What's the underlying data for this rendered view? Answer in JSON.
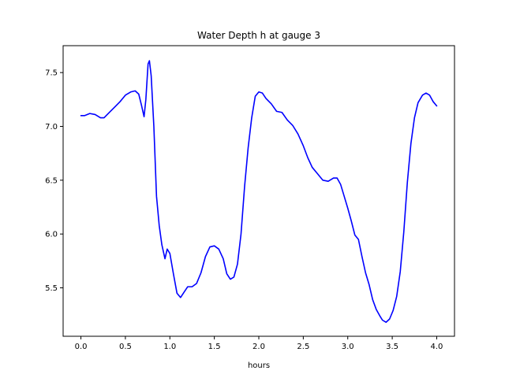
{
  "chart_data": {
    "type": "line",
    "title": "Water Depth h at gauge 3",
    "xlabel": "hours",
    "ylabel": "",
    "xlim": [
      -0.2,
      4.2
    ],
    "ylim": [
      5.05,
      7.75
    ],
    "grid": false,
    "xticks": [
      {
        "value": 0.0,
        "label": "0.0"
      },
      {
        "value": 0.5,
        "label": "0.5"
      },
      {
        "value": 1.0,
        "label": "1.0"
      },
      {
        "value": 1.5,
        "label": "1.5"
      },
      {
        "value": 2.0,
        "label": "2.0"
      },
      {
        "value": 2.5,
        "label": "2.5"
      },
      {
        "value": 3.0,
        "label": "3.0"
      },
      {
        "value": 3.5,
        "label": "3.5"
      },
      {
        "value": 4.0,
        "label": "4.0"
      }
    ],
    "yticks": [
      {
        "value": 5.5,
        "label": "5.5"
      },
      {
        "value": 6.0,
        "label": "6.0"
      },
      {
        "value": 6.5,
        "label": "6.5"
      },
      {
        "value": 7.0,
        "label": "7.0"
      },
      {
        "value": 7.5,
        "label": "7.5"
      }
    ],
    "series": [
      {
        "color": "#0000ff",
        "points": [
          [
            0.0,
            7.1
          ],
          [
            0.04,
            7.1
          ],
          [
            0.1,
            7.12
          ],
          [
            0.16,
            7.11
          ],
          [
            0.22,
            7.08
          ],
          [
            0.26,
            7.08
          ],
          [
            0.32,
            7.13
          ],
          [
            0.38,
            7.18
          ],
          [
            0.44,
            7.23
          ],
          [
            0.5,
            7.29
          ],
          [
            0.56,
            7.32
          ],
          [
            0.61,
            7.33
          ],
          [
            0.65,
            7.3
          ],
          [
            0.68,
            7.2
          ],
          [
            0.71,
            7.09
          ],
          [
            0.73,
            7.25
          ],
          [
            0.755,
            7.58
          ],
          [
            0.77,
            7.61
          ],
          [
            0.79,
            7.47
          ],
          [
            0.82,
            7.0
          ],
          [
            0.85,
            6.35
          ],
          [
            0.88,
            6.08
          ],
          [
            0.91,
            5.9
          ],
          [
            0.945,
            5.77
          ],
          [
            0.97,
            5.86
          ],
          [
            1.0,
            5.82
          ],
          [
            1.04,
            5.63
          ],
          [
            1.08,
            5.45
          ],
          [
            1.12,
            5.41
          ],
          [
            1.16,
            5.46
          ],
          [
            1.2,
            5.51
          ],
          [
            1.25,
            5.51
          ],
          [
            1.3,
            5.54
          ],
          [
            1.35,
            5.64
          ],
          [
            1.4,
            5.79
          ],
          [
            1.45,
            5.88
          ],
          [
            1.5,
            5.89
          ],
          [
            1.55,
            5.86
          ],
          [
            1.6,
            5.77
          ],
          [
            1.64,
            5.63
          ],
          [
            1.68,
            5.58
          ],
          [
            1.72,
            5.6
          ],
          [
            1.76,
            5.72
          ],
          [
            1.8,
            6.0
          ],
          [
            1.84,
            6.44
          ],
          [
            1.88,
            6.8
          ],
          [
            1.92,
            7.08
          ],
          [
            1.96,
            7.28
          ],
          [
            2.0,
            7.32
          ],
          [
            2.04,
            7.31
          ],
          [
            2.08,
            7.26
          ],
          [
            2.14,
            7.21
          ],
          [
            2.2,
            7.14
          ],
          [
            2.26,
            7.13
          ],
          [
            2.32,
            7.06
          ],
          [
            2.38,
            7.01
          ],
          [
            2.44,
            6.93
          ],
          [
            2.5,
            6.82
          ],
          [
            2.55,
            6.71
          ],
          [
            2.6,
            6.62
          ],
          [
            2.66,
            6.56
          ],
          [
            2.72,
            6.5
          ],
          [
            2.78,
            6.49
          ],
          [
            2.84,
            6.52
          ],
          [
            2.88,
            6.52
          ],
          [
            2.92,
            6.46
          ],
          [
            2.96,
            6.35
          ],
          [
            3.0,
            6.24
          ],
          [
            3.04,
            6.12
          ],
          [
            3.08,
            5.99
          ],
          [
            3.12,
            5.95
          ],
          [
            3.16,
            5.79
          ],
          [
            3.2,
            5.64
          ],
          [
            3.24,
            5.53
          ],
          [
            3.28,
            5.39
          ],
          [
            3.32,
            5.3
          ],
          [
            3.36,
            5.24
          ],
          [
            3.39,
            5.2
          ],
          [
            3.43,
            5.18
          ],
          [
            3.47,
            5.21
          ],
          [
            3.51,
            5.29
          ],
          [
            3.55,
            5.42
          ],
          [
            3.59,
            5.65
          ],
          [
            3.63,
            6.02
          ],
          [
            3.67,
            6.48
          ],
          [
            3.71,
            6.84
          ],
          [
            3.75,
            7.08
          ],
          [
            3.79,
            7.22
          ],
          [
            3.84,
            7.29
          ],
          [
            3.88,
            7.31
          ],
          [
            3.92,
            7.29
          ],
          [
            3.96,
            7.23
          ],
          [
            4.0,
            7.19
          ]
        ]
      }
    ]
  }
}
